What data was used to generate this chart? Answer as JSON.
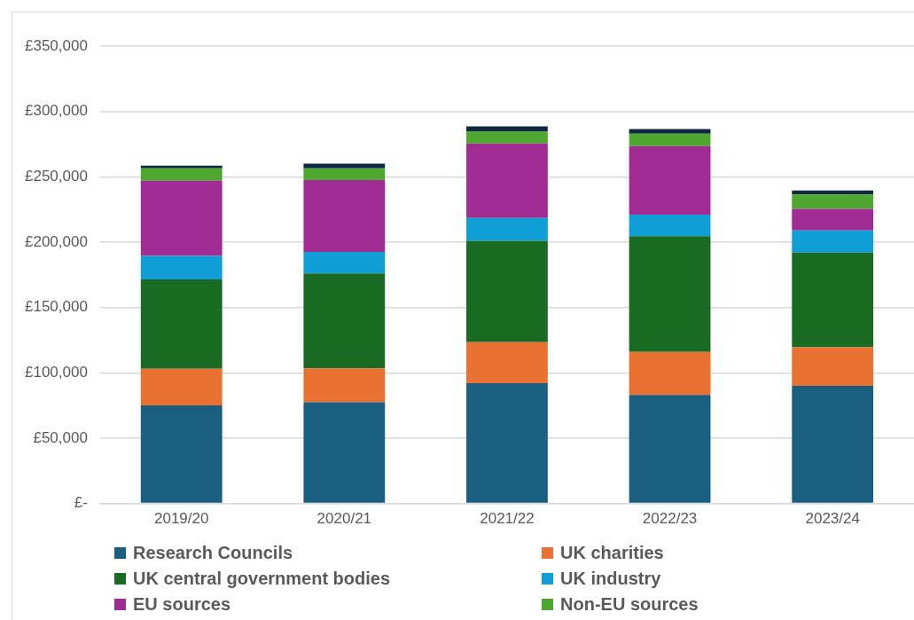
{
  "chart_data": {
    "type": "bar",
    "stacked": true,
    "categories": [
      "2019/20",
      "2020/21",
      "2021/22",
      "2022/23",
      "2023/24"
    ],
    "series": [
      {
        "name": "Research Councils",
        "color": "#1a5f80",
        "values": [
          75000,
          77500,
          92000,
          83000,
          90000
        ]
      },
      {
        "name": "UK charities",
        "color": "#e97132",
        "values": [
          28000,
          26000,
          31500,
          33000,
          29500
        ]
      },
      {
        "name": "UK central government bodies",
        "color": "#196b24",
        "values": [
          68500,
          72500,
          77500,
          88500,
          72500
        ]
      },
      {
        "name": "UK industry",
        "color": "#0f9ed5",
        "values": [
          18000,
          16500,
          17500,
          16500,
          17000
        ]
      },
      {
        "name": "EU sources",
        "color": "#a02b93",
        "values": [
          57500,
          55000,
          57000,
          52500,
          16500
        ]
      },
      {
        "name": "Non-EU sources",
        "color": "#4ea72e",
        "values": [
          9500,
          9000,
          9000,
          9500,
          11000
        ]
      },
      {
        "color": "#0e2841",
        "values": [
          2000,
          3500,
          4000,
          3500,
          3000
        ]
      }
    ],
    "ylim": [
      0,
      350000
    ],
    "yticks": [
      {
        "value": 0,
        "label": "£-"
      },
      {
        "value": 50000,
        "label": "£50,000"
      },
      {
        "value": 100000,
        "label": "£100,000"
      },
      {
        "value": 150000,
        "label": "£150,000"
      },
      {
        "value": 200000,
        "label": "£200,000"
      },
      {
        "value": 250000,
        "label": "£250,000"
      },
      {
        "value": 300000,
        "label": "£300,000"
      },
      {
        "value": 350000,
        "label": "£350,000"
      }
    ],
    "grid": "y",
    "legend": "bottom"
  }
}
